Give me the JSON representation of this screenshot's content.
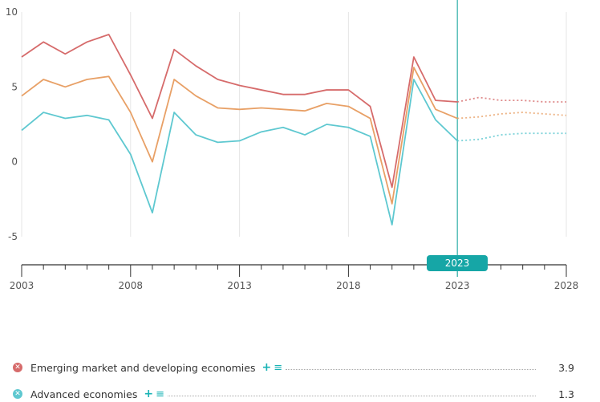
{
  "chart_data": {
    "type": "line",
    "x": [
      2003,
      2004,
      2005,
      2006,
      2007,
      2008,
      2009,
      2010,
      2011,
      2012,
      2013,
      2014,
      2015,
      2016,
      2017,
      2018,
      2019,
      2020,
      2021,
      2022,
      2023,
      2024,
      2025,
      2026,
      2027,
      2028
    ],
    "x_ticks": [
      "2003",
      "2008",
      "2013",
      "2018",
      "2023",
      "2028"
    ],
    "y_ticks": [
      "10",
      "5",
      "0",
      "-5"
    ],
    "ylim": [
      -5,
      10
    ],
    "xlim": [
      2003,
      2028
    ],
    "highlight_year": "2023",
    "forecast_from": 2023,
    "grid": "vertical",
    "series": [
      {
        "name": "Emerging market and developing economies",
        "color": "#d66b6b",
        "values": [
          7.0,
          8.0,
          7.2,
          8.0,
          8.5,
          5.8,
          2.9,
          7.5,
          6.4,
          5.5,
          5.1,
          4.8,
          4.5,
          4.5,
          4.8,
          4.8,
          3.7,
          -1.7,
          7.0,
          4.1,
          4.0,
          4.3,
          4.1,
          4.1,
          4.0,
          4.0
        ],
        "legend_value": "3.9"
      },
      {
        "name": "",
        "color": "#e8a066",
        "values": [
          4.4,
          5.5,
          5.0,
          5.5,
          5.7,
          3.3,
          0.0,
          5.5,
          4.4,
          3.6,
          3.5,
          3.6,
          3.5,
          3.4,
          3.9,
          3.7,
          2.9,
          -2.8,
          6.3,
          3.5,
          2.9,
          3.0,
          3.2,
          3.3,
          3.2,
          3.1
        ]
      },
      {
        "name": "Advanced economies",
        "color": "#5ec8d0",
        "values": [
          2.1,
          3.3,
          2.9,
          3.1,
          2.8,
          0.5,
          -3.4,
          3.3,
          1.8,
          1.3,
          1.4,
          2.0,
          2.3,
          1.8,
          2.5,
          2.3,
          1.7,
          -4.2,
          5.5,
          2.8,
          1.4,
          1.5,
          1.8,
          1.9,
          1.9,
          1.9
        ],
        "legend_value": "1.3"
      }
    ]
  },
  "legend": {
    "items": [
      {
        "name": "Emerging market and developing economies",
        "value": "3.9",
        "color": "#d66b6b",
        "icon": "x-circle-icon"
      },
      {
        "name": "Advanced economies",
        "value": "1.3",
        "color": "#5ec8d0",
        "icon": "x-circle-icon"
      }
    ],
    "plus_glyph": "+",
    "list_glyph": "≡",
    "dot_glyph": "✕"
  }
}
